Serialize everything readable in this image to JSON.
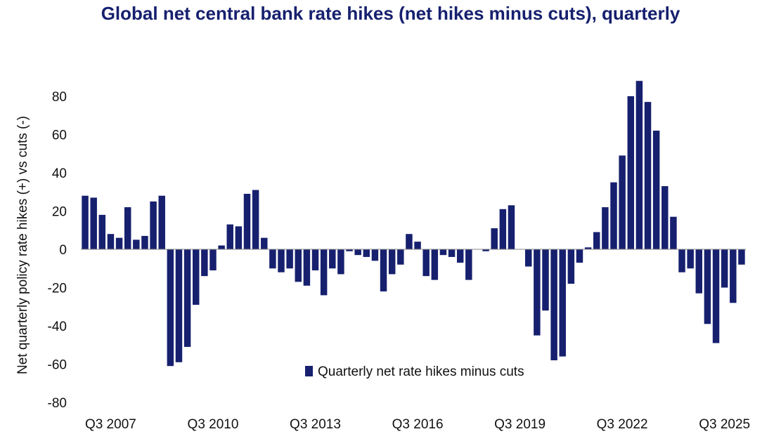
{
  "chart_data": {
    "type": "bar",
    "title": "Global net central bank rate hikes (net hikes minus cuts), quarterly",
    "ylabel": "Net quarterly policy rate hikes (+) vs cuts (-)",
    "xlabel": "",
    "ylim": [
      -80,
      90
    ],
    "yticks": [
      80,
      60,
      40,
      20,
      0,
      -20,
      -40,
      -60,
      -80
    ],
    "x_tick_labels": [
      "Q3 2007",
      "Q3 2010",
      "Q3 2013",
      "Q3 2016",
      "Q3 2019",
      "Q3 2022",
      "Q3 2025"
    ],
    "x_tick_category_index": [
      3,
      15,
      27,
      39,
      51,
      63,
      75
    ],
    "legend": "bottom-center",
    "grid": false,
    "bar_color": "#16206e",
    "series": [
      {
        "name": "Quarterly net rate hikes minus cuts",
        "values": [
          28,
          27,
          18,
          8,
          6,
          22,
          5,
          7,
          25,
          28,
          -61,
          -59,
          -51,
          -29,
          -14,
          -11,
          2,
          13,
          12,
          29,
          31,
          6,
          -10,
          -12,
          -10,
          -17,
          -19,
          -11,
          -24,
          -10,
          -13,
          -1,
          -3,
          -4,
          -6,
          -22,
          -13,
          -8,
          8,
          4,
          -14,
          -16,
          -3,
          -4,
          -7,
          -16,
          0,
          -1,
          11,
          21,
          23,
          0,
          -9,
          -45,
          -32,
          -58,
          -56,
          -18,
          -7,
          1,
          9,
          22,
          35,
          49,
          80,
          88,
          77,
          62,
          33,
          17,
          -12,
          -10,
          -23,
          -39,
          -49,
          -20,
          -28,
          -8
        ]
      }
    ]
  }
}
